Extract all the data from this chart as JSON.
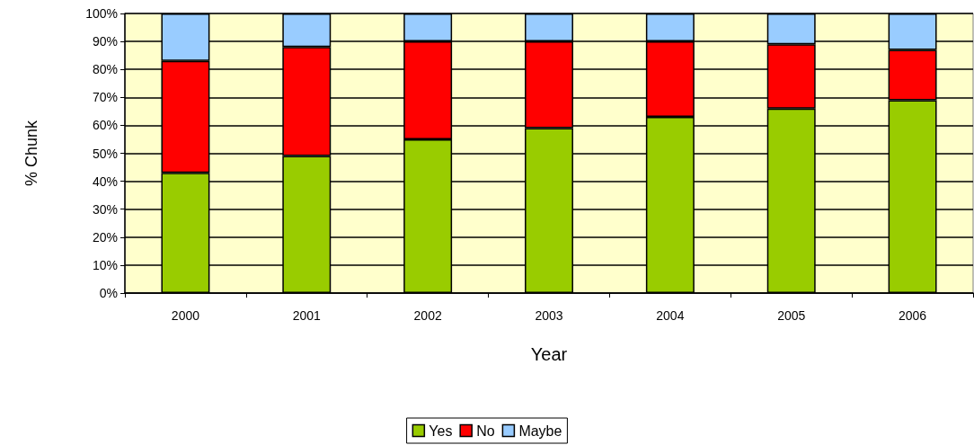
{
  "chart_data": {
    "type": "bar",
    "stacked": true,
    "xlabel": "Year",
    "ylabel": "% Chunk",
    "categories": [
      "2000",
      "2001",
      "2002",
      "2003",
      "2004",
      "2005",
      "2006"
    ],
    "series": [
      {
        "name": "Yes",
        "color": "#99cc00",
        "values": [
          43,
          49,
          55,
          59,
          63,
          66,
          69
        ]
      },
      {
        "name": "No",
        "color": "#ff0000",
        "values": [
          40,
          39,
          35,
          31,
          27,
          23,
          18
        ]
      },
      {
        "name": "Maybe",
        "color": "#99ccff",
        "values": [
          17,
          12,
          10,
          10,
          10,
          11,
          13
        ]
      }
    ],
    "ylim": [
      0,
      100
    ],
    "yticks": [
      {
        "value": 0,
        "label": "0%"
      },
      {
        "value": 10,
        "label": "10%"
      },
      {
        "value": 20,
        "label": "20%"
      },
      {
        "value": 30,
        "label": "30%"
      },
      {
        "value": 40,
        "label": "40%"
      },
      {
        "value": 50,
        "label": "50%"
      },
      {
        "value": 60,
        "label": "60%"
      },
      {
        "value": 70,
        "label": "70%"
      },
      {
        "value": 80,
        "label": "80%"
      },
      {
        "value": 90,
        "label": "90%"
      },
      {
        "value": 100,
        "label": "100%"
      }
    ],
    "grid": "y",
    "legend": "bottom"
  }
}
